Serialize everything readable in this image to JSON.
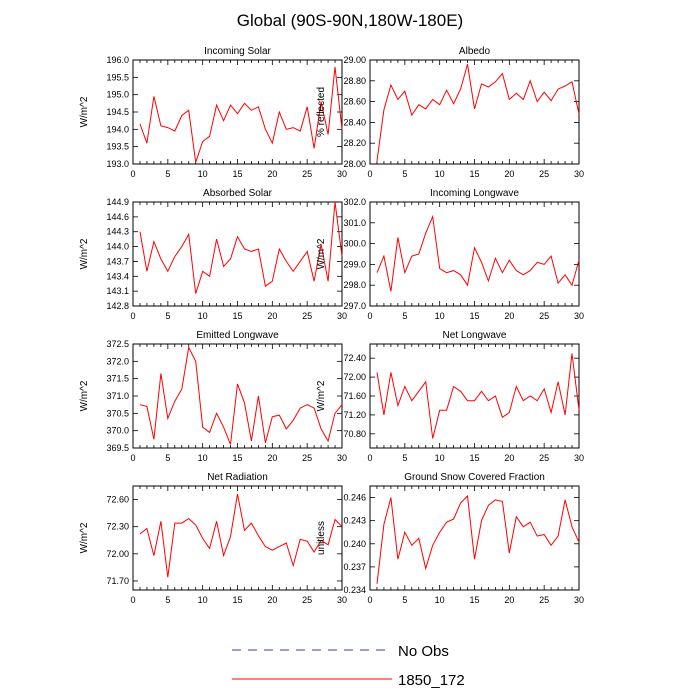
{
  "figure": {
    "title": "Global (90S-90N,180W-180E)"
  },
  "legend": {
    "entries": [
      {
        "label": "No Obs",
        "color": "#3333cc",
        "dashed": true
      },
      {
        "label": "1850_172",
        "color": "#ff0000",
        "dashed": false
      }
    ]
  },
  "chart_data": [
    {
      "type": "line",
      "title": "Incoming Solar",
      "ylabel": "W/m^2",
      "xlim": [
        0,
        30
      ],
      "ylim": [
        193.0,
        196.0
      ],
      "xticks": [
        "0",
        "5",
        "10",
        "15",
        "20",
        "25",
        "30"
      ],
      "yticks": [
        "193.0",
        "193.5",
        "194.0",
        "194.5",
        "195.0",
        "195.5",
        "196.0"
      ],
      "series": [
        {
          "name": "1850_172",
          "color": "#ff0000",
          "x": [
            1,
            2,
            3,
            4,
            5,
            6,
            7,
            8,
            9,
            10,
            11,
            12,
            13,
            14,
            15,
            16,
            17,
            18,
            19,
            20,
            21,
            22,
            23,
            24,
            25,
            26,
            27,
            28,
            29,
            30
          ],
          "values": [
            194.15,
            193.6,
            194.95,
            194.1,
            194.05,
            193.95,
            194.4,
            194.55,
            193.05,
            193.65,
            193.8,
            194.7,
            194.25,
            194.7,
            194.45,
            194.75,
            194.55,
            194.65,
            194.0,
            193.6,
            194.5,
            194.0,
            194.05,
            193.95,
            194.65,
            193.45,
            194.8,
            193.85,
            195.8,
            194.0
          ]
        }
      ]
    },
    {
      "type": "line",
      "title": "Albedo",
      "ylabel": "% reflected",
      "xlim": [
        0,
        30
      ],
      "ylim": [
        28.0,
        29.0
      ],
      "xticks": [
        "0",
        "5",
        "10",
        "15",
        "20",
        "25",
        "30"
      ],
      "yticks": [
        "28.00",
        "28.20",
        "28.40",
        "28.60",
        "28.80",
        "29.00"
      ],
      "series": [
        {
          "name": "1850_172",
          "color": "#ff0000",
          "x": [
            1,
            2,
            3,
            4,
            5,
            6,
            7,
            8,
            9,
            10,
            11,
            12,
            13,
            14,
            15,
            16,
            17,
            18,
            19,
            20,
            21,
            22,
            23,
            24,
            25,
            26,
            27,
            28,
            29,
            30
          ],
          "values": [
            28.03,
            28.52,
            28.76,
            28.62,
            28.7,
            28.47,
            28.57,
            28.53,
            28.62,
            28.57,
            28.71,
            28.58,
            28.72,
            28.96,
            28.53,
            28.77,
            28.74,
            28.79,
            28.87,
            28.62,
            28.68,
            28.62,
            28.8,
            28.6,
            28.69,
            28.61,
            28.72,
            28.75,
            28.79,
            28.48
          ]
        }
      ]
    },
    {
      "type": "line",
      "title": "Absorbed Solar",
      "ylabel": "W/m^2",
      "xlim": [
        0,
        30
      ],
      "ylim": [
        142.8,
        144.9
      ],
      "xticks": [
        "0",
        "5",
        "10",
        "15",
        "20",
        "25",
        "30"
      ],
      "yticks": [
        "142.8",
        "143.1",
        "143.4",
        "143.7",
        "144.0",
        "144.3",
        "144.6",
        "144.9"
      ],
      "series": [
        {
          "name": "1850_172",
          "color": "#ff0000",
          "x": [
            1,
            2,
            3,
            4,
            5,
            6,
            7,
            8,
            9,
            10,
            11,
            12,
            13,
            14,
            15,
            16,
            17,
            18,
            19,
            20,
            21,
            22,
            23,
            24,
            25,
            26,
            27,
            28,
            29,
            30
          ],
          "values": [
            144.3,
            143.5,
            144.1,
            143.75,
            143.5,
            143.8,
            144.0,
            144.25,
            143.05,
            143.5,
            143.4,
            144.15,
            143.6,
            143.75,
            144.2,
            143.95,
            143.9,
            143.95,
            143.2,
            143.3,
            143.95,
            143.7,
            143.5,
            143.7,
            143.9,
            143.3,
            144.05,
            143.3,
            144.9,
            143.8
          ]
        }
      ]
    },
    {
      "type": "line",
      "title": "Incoming Longwave",
      "ylabel": "W/m^2",
      "xlim": [
        0,
        30
      ],
      "ylim": [
        297.0,
        302.0
      ],
      "xticks": [
        "0",
        "5",
        "10",
        "15",
        "20",
        "25",
        "30"
      ],
      "yticks": [
        "297.0",
        "298.0",
        "299.0",
        "300.0",
        "301.0",
        "302.0"
      ],
      "series": [
        {
          "name": "1850_172",
          "color": "#ff0000",
          "x": [
            1,
            2,
            3,
            4,
            5,
            6,
            7,
            8,
            9,
            10,
            11,
            12,
            13,
            14,
            15,
            16,
            17,
            18,
            19,
            20,
            21,
            22,
            23,
            24,
            25,
            26,
            27,
            28,
            29,
            30
          ],
          "values": [
            298.6,
            299.4,
            297.7,
            300.3,
            298.6,
            299.4,
            299.5,
            300.5,
            301.3,
            298.8,
            298.6,
            298.7,
            298.5,
            298.0,
            299.8,
            299.1,
            298.2,
            299.3,
            298.6,
            299.2,
            298.7,
            298.5,
            298.7,
            299.1,
            299.0,
            299.4,
            298.1,
            298.5,
            298.0,
            299.2
          ]
        }
      ]
    },
    {
      "type": "line",
      "title": "Emitted Longwave",
      "ylabel": "W/m^2",
      "xlim": [
        0,
        30
      ],
      "ylim": [
        369.5,
        372.5
      ],
      "xticks": [
        "0",
        "5",
        "10",
        "15",
        "20",
        "25",
        "30"
      ],
      "yticks": [
        "369.5",
        "370.0",
        "370.5",
        "371.0",
        "371.5",
        "372.0",
        "372.5"
      ],
      "series": [
        {
          "name": "1850_172",
          "color": "#ff0000",
          "x": [
            1,
            2,
            3,
            4,
            5,
            6,
            7,
            8,
            9,
            10,
            11,
            12,
            13,
            14,
            15,
            16,
            17,
            18,
            19,
            20,
            21,
            22,
            23,
            24,
            25,
            26,
            27,
            28,
            29,
            30
          ],
          "values": [
            370.75,
            370.7,
            369.75,
            371.65,
            370.35,
            370.85,
            371.2,
            372.4,
            372.0,
            370.1,
            369.95,
            370.5,
            370.1,
            369.6,
            371.35,
            370.8,
            369.7,
            371.0,
            369.65,
            370.4,
            370.45,
            370.05,
            370.3,
            370.65,
            370.75,
            370.65,
            370.05,
            369.7,
            370.5,
            370.75
          ]
        }
      ]
    },
    {
      "type": "line",
      "title": "Net Longwave",
      "ylabel": "W/m^2",
      "xlim": [
        0,
        30
      ],
      "ylim": [
        70.5,
        72.7
      ],
      "xticks": [
        "0",
        "5",
        "10",
        "15",
        "20",
        "25",
        "30"
      ],
      "yticks": [
        "70.80",
        "71.20",
        "71.60",
        "72.00",
        "72.40"
      ],
      "series": [
        {
          "name": "1850_172",
          "color": "#ff0000",
          "x": [
            1,
            2,
            3,
            4,
            5,
            6,
            7,
            8,
            9,
            10,
            11,
            12,
            13,
            14,
            15,
            16,
            17,
            18,
            19,
            20,
            21,
            22,
            23,
            24,
            25,
            26,
            27,
            28,
            29,
            30
          ],
          "values": [
            72.1,
            71.2,
            72.1,
            71.4,
            71.8,
            71.5,
            71.7,
            71.9,
            70.7,
            71.3,
            71.3,
            71.8,
            71.7,
            71.5,
            71.5,
            71.7,
            71.5,
            71.6,
            71.15,
            71.25,
            71.8,
            71.5,
            71.6,
            71.5,
            71.75,
            71.25,
            71.9,
            71.2,
            72.5,
            71.3
          ]
        }
      ]
    },
    {
      "type": "line",
      "title": "Net Radiation",
      "ylabel": "W/m^2",
      "xlim": [
        0,
        30
      ],
      "ylim": [
        71.6,
        72.75
      ],
      "xticks": [
        "0",
        "5",
        "10",
        "15",
        "20",
        "25",
        "30"
      ],
      "yticks": [
        "71.70",
        "72.00",
        "72.30",
        "72.60"
      ],
      "series": [
        {
          "name": "1850_172",
          "color": "#ff0000",
          "x": [
            1,
            2,
            3,
            4,
            5,
            6,
            7,
            8,
            9,
            10,
            11,
            12,
            13,
            14,
            15,
            16,
            17,
            18,
            19,
            20,
            21,
            22,
            23,
            24,
            25,
            26,
            27,
            28,
            29,
            30
          ],
          "values": [
            72.22,
            72.28,
            71.98,
            72.36,
            71.74,
            72.34,
            72.34,
            72.39,
            72.32,
            72.17,
            72.06,
            72.36,
            71.98,
            72.19,
            72.66,
            72.26,
            72.34,
            72.2,
            72.08,
            72.04,
            72.08,
            72.12,
            71.87,
            72.16,
            72.14,
            72.02,
            72.15,
            72.1,
            72.38,
            72.3
          ]
        }
      ]
    },
    {
      "type": "line",
      "title": "Ground Snow Covered Fraction",
      "ylabel": "unitless",
      "xlim": [
        0,
        30
      ],
      "ylim": [
        0.234,
        0.2475
      ],
      "xticks": [
        "0",
        "5",
        "10",
        "15",
        "20",
        "25",
        "30"
      ],
      "yticks": [
        "0.234",
        "0.237",
        "0.240",
        "0.243",
        "0.246"
      ],
      "series": [
        {
          "name": "1850_172",
          "color": "#ff0000",
          "x": [
            1,
            2,
            3,
            4,
            5,
            6,
            7,
            8,
            9,
            10,
            11,
            12,
            13,
            14,
            15,
            16,
            17,
            18,
            19,
            20,
            21,
            22,
            23,
            24,
            25,
            26,
            27,
            28,
            29,
            30
          ],
          "values": [
            0.2348,
            0.2425,
            0.246,
            0.238,
            0.2415,
            0.2398,
            0.2407,
            0.2368,
            0.2398,
            0.2415,
            0.2428,
            0.2432,
            0.2453,
            0.2462,
            0.238,
            0.243,
            0.245,
            0.2457,
            0.2455,
            0.2388,
            0.2435,
            0.2422,
            0.2428,
            0.241,
            0.2412,
            0.2398,
            0.241,
            0.2457,
            0.2422,
            0.2402
          ]
        }
      ]
    }
  ]
}
